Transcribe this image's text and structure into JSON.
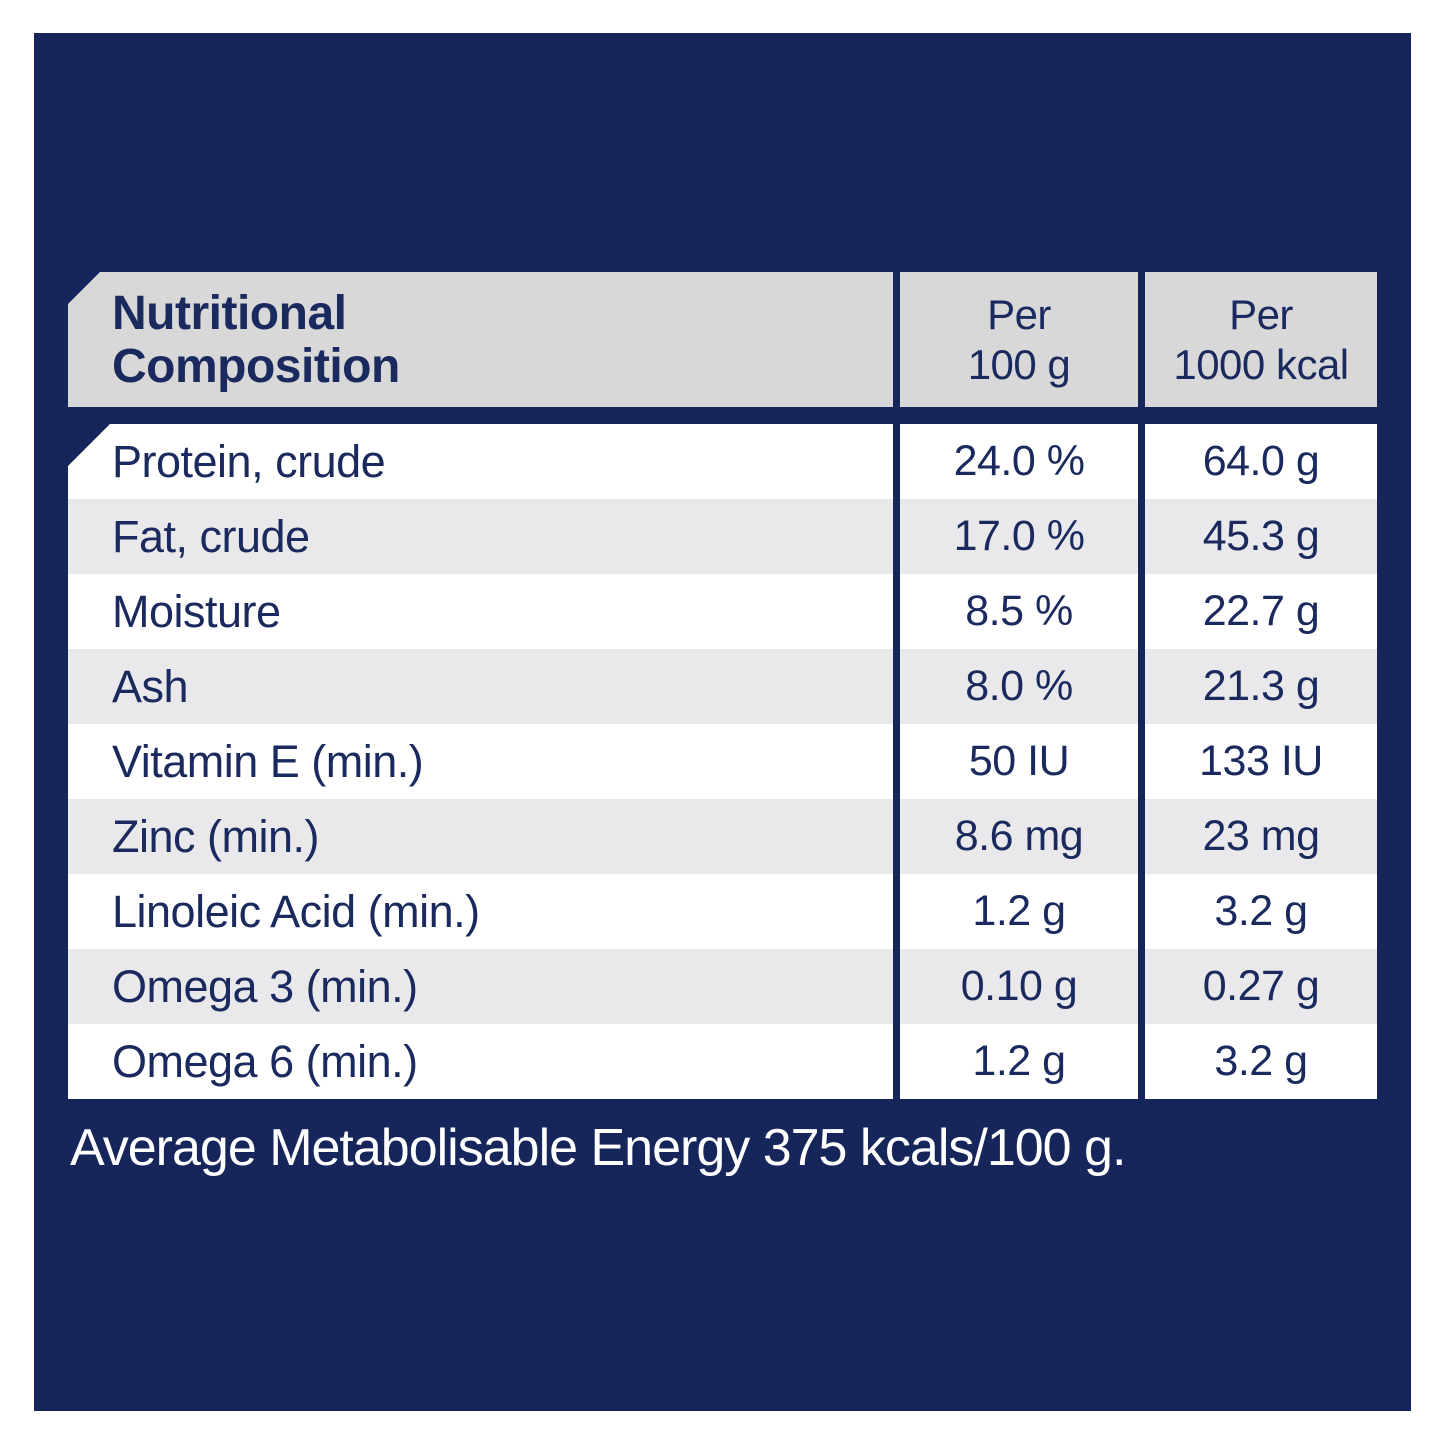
{
  "colors": {
    "panel_navy": "#16265B",
    "header_gray": "#D8D8D9",
    "row_alt_gray": "#E9E9EB",
    "row_white": "#FFFFFF",
    "text_navy": "#1B2A5E",
    "footer_text": "#FFFFFF"
  },
  "table": {
    "header": {
      "title": "Nutritional\nComposition",
      "col_per_100g": "Per\n100 g",
      "col_per_1000kcal": "Per\n1000 kcal"
    },
    "rows": [
      {
        "label": "Protein, crude",
        "per_100g": "24.0 %",
        "per_1000kcal": "64.0 g"
      },
      {
        "label": "Fat, crude",
        "per_100g": "17.0 %",
        "per_1000kcal": "45.3 g"
      },
      {
        "label": "Moisture",
        "per_100g": "8.5 %",
        "per_1000kcal": "22.7 g"
      },
      {
        "label": "Ash",
        "per_100g": "8.0 %",
        "per_1000kcal": "21.3 g"
      },
      {
        "label": "Vitamin E (min.)",
        "per_100g": "50 IU",
        "per_1000kcal": "133 IU"
      },
      {
        "label": "Zinc (min.)",
        "per_100g": "8.6 mg",
        "per_1000kcal": "23 mg"
      },
      {
        "label": "Linoleic Acid (min.)",
        "per_100g": "1.2 g",
        "per_1000kcal": "3.2 g"
      },
      {
        "label": "Omega 3 (min.)",
        "per_100g": "0.10 g",
        "per_1000kcal": "0.27 g"
      },
      {
        "label": "Omega 6 (min.)",
        "per_100g": "1.2 g",
        "per_1000kcal": "3.2 g"
      }
    ]
  },
  "footer": {
    "text": "Average Metabolisable Energy 375 kcals/100 g."
  }
}
